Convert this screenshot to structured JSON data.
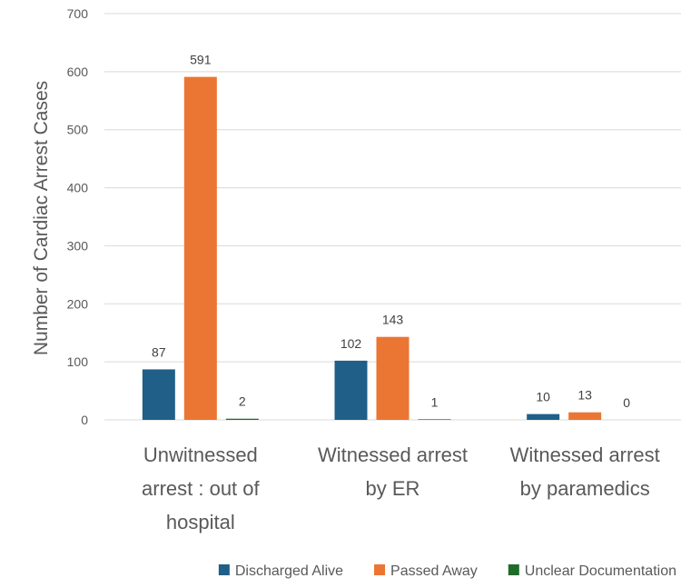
{
  "chart_data": {
    "type": "bar",
    "ylabel": "Number of Cardiac Arrest Cases",
    "ylim": [
      0,
      700
    ],
    "yticks": [
      0,
      100,
      200,
      300,
      400,
      500,
      600,
      700
    ],
    "grid": true,
    "legend_position": "bottom",
    "categories": [
      [
        "Unwitnessed",
        "arrest : out of",
        "hospital"
      ],
      [
        "Witnessed arrest",
        "by ER"
      ],
      [
        "Witnessed arrest",
        "by paramedics"
      ]
    ],
    "series": [
      {
        "name": "Discharged Alive",
        "color": "#1f5f88",
        "values": [
          87,
          102,
          10
        ]
      },
      {
        "name": "Passed Away",
        "color": "#eb7533",
        "values": [
          591,
          143,
          13
        ]
      },
      {
        "name": "Unclear Documentation",
        "color": "#1f6b2a",
        "values": [
          2,
          1,
          0
        ]
      }
    ]
  }
}
